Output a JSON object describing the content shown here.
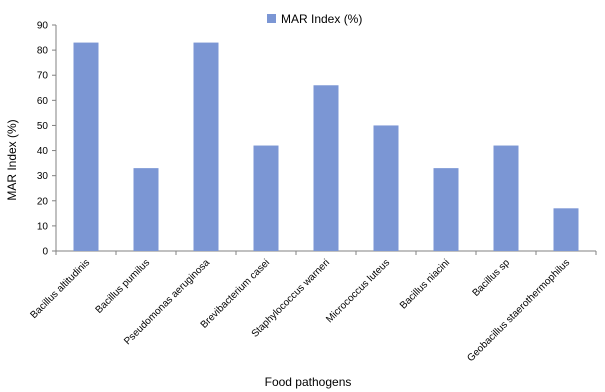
{
  "chart_data": {
    "type": "bar",
    "categories": [
      "Bacillus altitudinis",
      "Bacillus pumilus",
      "Pseudomonas aeruginosa",
      "Brevibacterium casei",
      "Staphylococcus warneri",
      "Micrococcus luteus",
      "Bacillus niacini",
      "Bacillus sp",
      "Geobacillus staerothermophilus"
    ],
    "series": [
      {
        "name": "MAR Index (%)",
        "values": [
          83,
          33,
          83,
          42,
          66,
          50,
          33,
          42,
          17
        ],
        "color": "#7b96d4"
      }
    ],
    "title": "",
    "xlabel": "Food pathogens",
    "ylabel": "MAR Index (%)",
    "ylim": [
      0,
      90
    ],
    "yticks": [
      0,
      10,
      20,
      30,
      40,
      50,
      60,
      70,
      80,
      90
    ],
    "grid": false,
    "legend": "top-center"
  }
}
